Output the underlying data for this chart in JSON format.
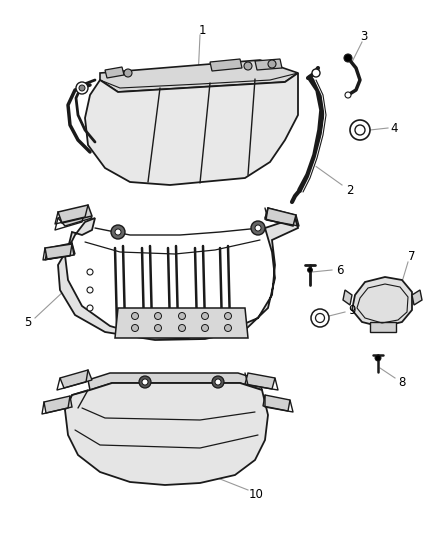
{
  "background_color": "#ffffff",
  "line_color": "#1a1a1a",
  "leader_color": "#999999",
  "fig_width": 4.38,
  "fig_height": 5.33,
  "dpi": 100
}
